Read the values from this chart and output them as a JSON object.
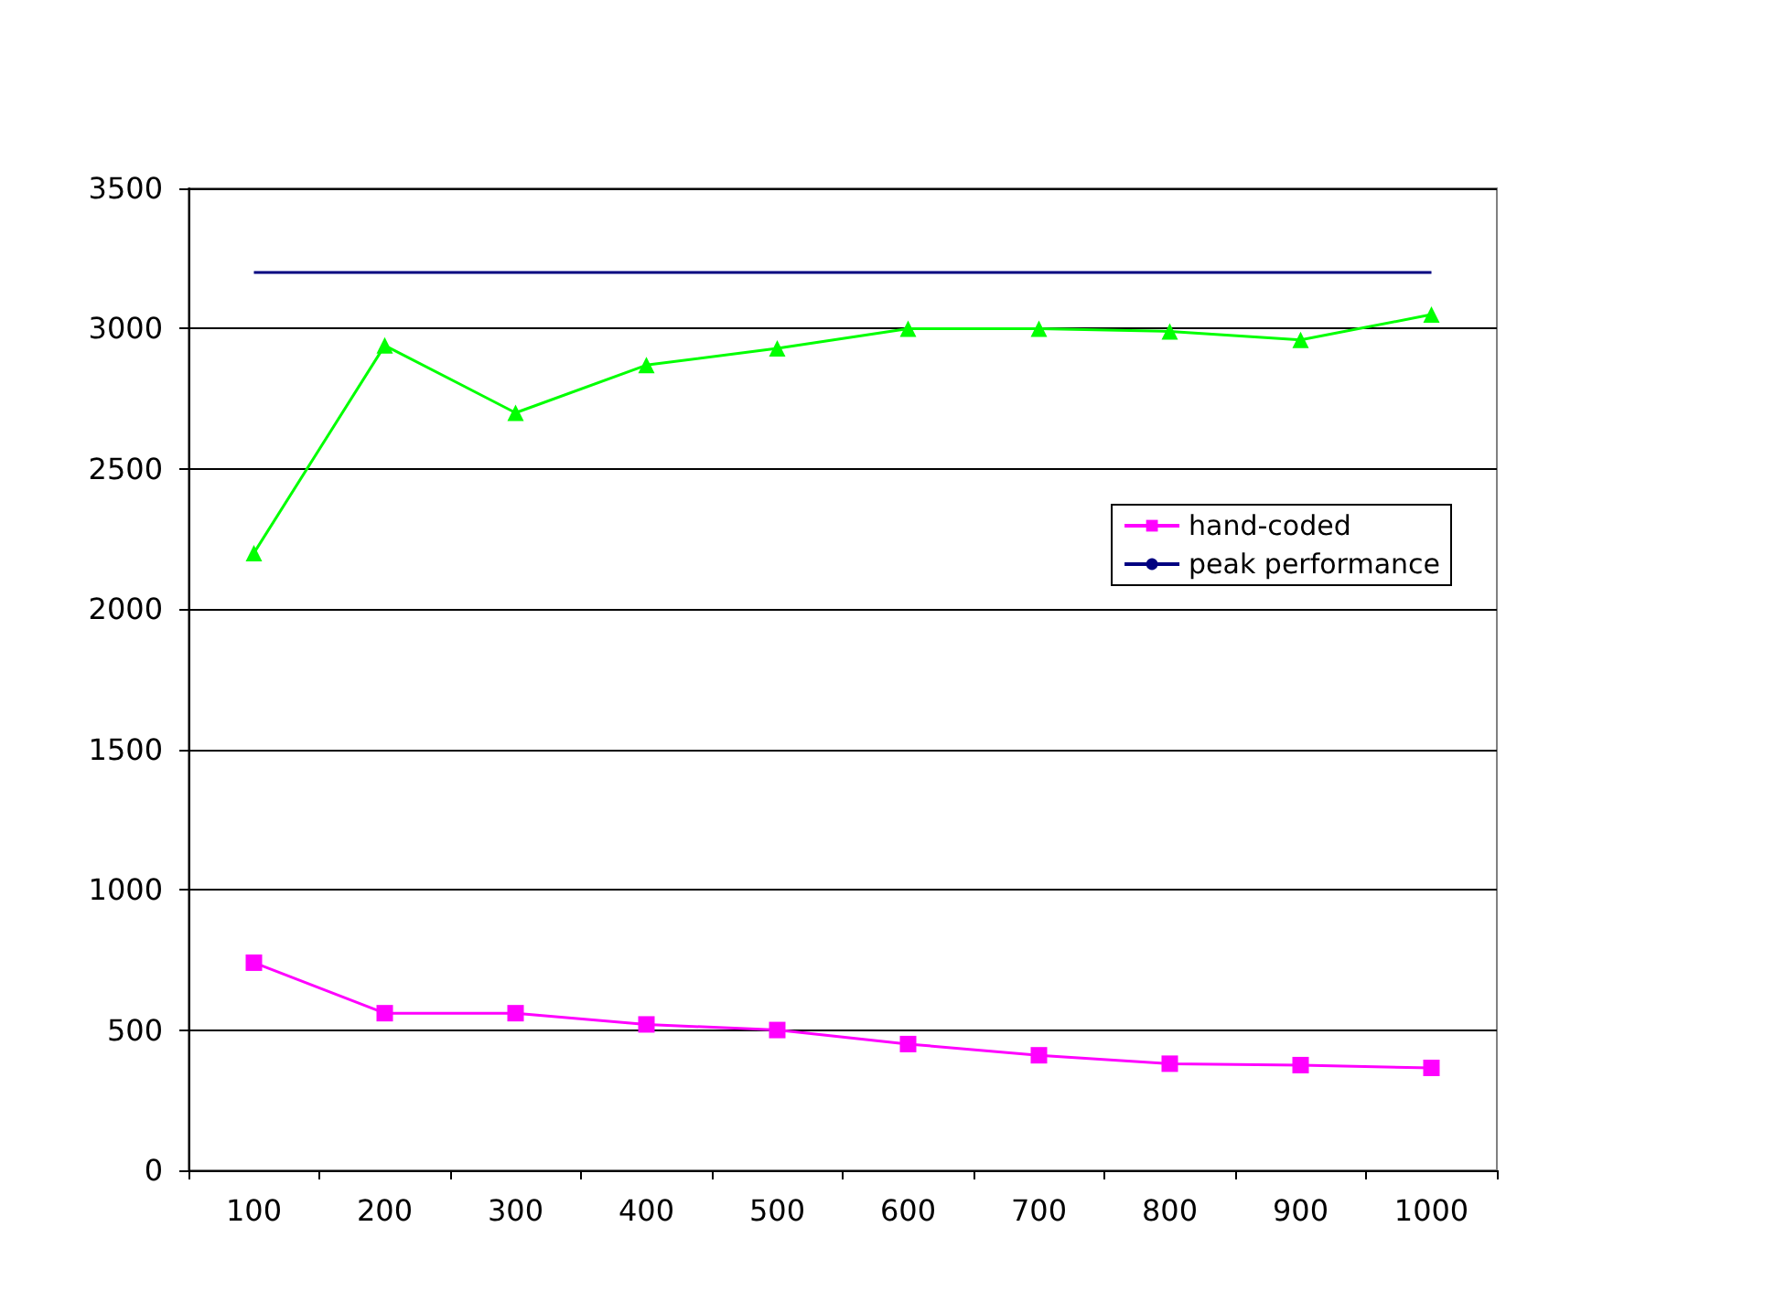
{
  "chart_data": {
    "type": "line",
    "categories": [
      "100",
      "200",
      "300",
      "400",
      "500",
      "600",
      "700",
      "800",
      "900",
      "1000"
    ],
    "series": [
      {
        "name": "hand-coded",
        "color": "#ff00ff",
        "marker": "square",
        "values": [
          740,
          560,
          560,
          520,
          500,
          450,
          410,
          380,
          375,
          365
        ]
      },
      {
        "color": "#00ff00",
        "marker": "triangle",
        "values": [
          2200,
          2940,
          2700,
          2870,
          2930,
          3000,
          3000,
          2990,
          2960,
          3050
        ]
      },
      {
        "name": "peak performance",
        "color": "#000080",
        "marker": "none",
        "values": [
          3200,
          3200,
          3200,
          3200,
          3200,
          3200,
          3200,
          3200,
          3200,
          3200
        ]
      }
    ],
    "ylim": [
      0,
      3500
    ],
    "yticks": [
      0,
      500,
      1000,
      1500,
      2000,
      2500,
      3000,
      3500
    ],
    "grid": "y",
    "legend": "right"
  }
}
